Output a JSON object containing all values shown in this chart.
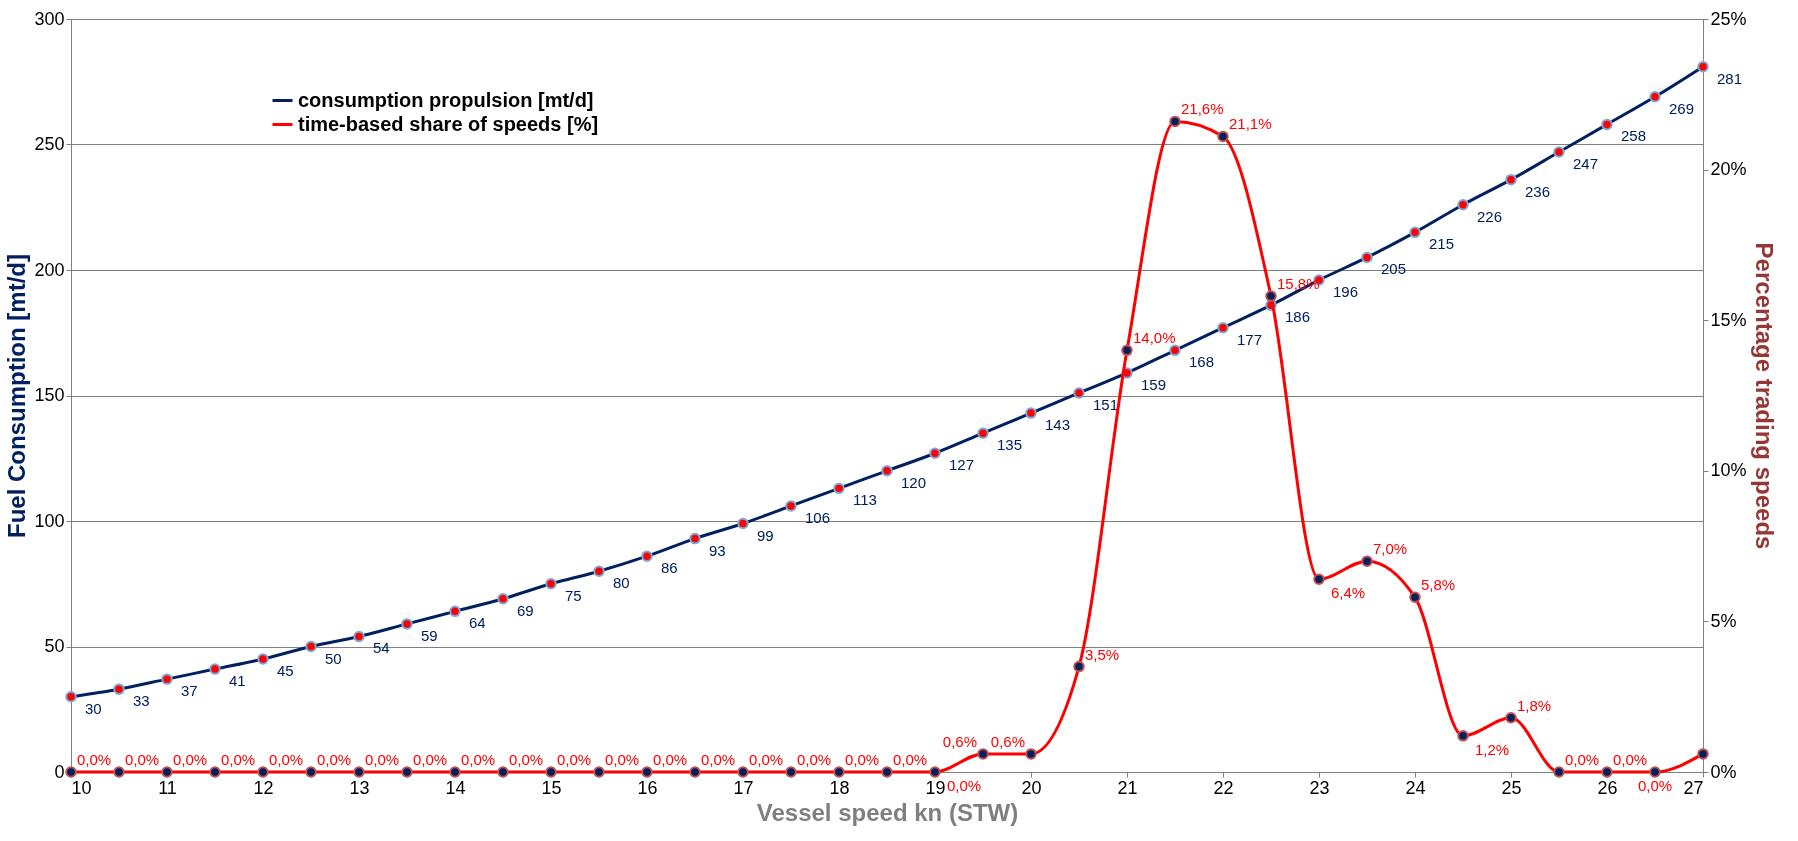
{
  "chart_data": {
    "type": "line",
    "xlabel": "Vessel speed kn (STW)",
    "ylabel": "Fuel Consumption [mt/d]",
    "y2label": "Percentage trading speeds",
    "x": [
      10,
      10.5,
      11,
      11.5,
      12,
      12.5,
      13,
      13.5,
      14,
      14.5,
      15,
      15.5,
      16,
      16.5,
      17,
      17.5,
      18,
      18.5,
      19,
      19.5,
      20,
      20.5,
      21,
      21.5,
      22,
      22.5,
      23,
      23.5,
      24,
      24.5,
      25,
      25.5,
      26,
      26.5,
      27
    ],
    "xlim": [
      10,
      27
    ],
    "xticks": [
      10,
      11,
      12,
      13,
      14,
      15,
      16,
      17,
      18,
      19,
      20,
      21,
      22,
      23,
      24,
      25,
      26,
      27
    ],
    "ylim": [
      0,
      300
    ],
    "yticks": [
      0,
      50,
      100,
      150,
      200,
      250,
      300
    ],
    "y2lim": [
      0,
      25
    ],
    "y2ticks": [
      {
        "value": 0,
        "label": "0%"
      },
      {
        "value": 5,
        "label": "5%"
      },
      {
        "value": 10,
        "label": "10%"
      },
      {
        "value": 15,
        "label": "15%"
      },
      {
        "value": 20,
        "label": "20%"
      },
      {
        "value": 25,
        "label": "25%"
      }
    ],
    "series": [
      {
        "name": "consumption propulsion [mt/d]",
        "color": "#002060",
        "values": [
          30,
          33,
          37,
          41,
          45,
          50,
          54,
          59,
          64,
          69,
          75,
          80,
          86,
          93,
          99,
          106,
          113,
          120,
          127,
          135,
          143,
          151,
          159,
          168,
          177,
          186,
          196,
          205,
          215,
          226,
          236,
          247,
          258,
          269,
          281
        ],
        "data_labels": true
      },
      {
        "name": "time-based share of speeds [%]",
        "color": "#ff0000",
        "axis": "y2",
        "values": [
          0,
          0,
          0,
          0,
          0,
          0,
          0,
          0,
          0,
          0,
          0,
          0,
          0,
          0,
          0,
          0,
          0,
          0,
          0,
          0.6,
          0.6,
          3.5,
          14.0,
          21.6,
          21.1,
          15.8,
          6.4,
          7.0,
          5.8,
          1.2,
          1.8,
          0,
          0,
          0,
          0.6
        ],
        "value_labels": [
          "0,0%",
          "0,0%",
          "0,0%",
          "0,0%",
          "0,0%",
          "0,0%",
          "0,0%",
          "0,0%",
          "0,0%",
          "0,0%",
          "0,0%",
          "0,0%",
          "0,0%",
          "0,0%",
          "0,0%",
          "0,0%",
          "0,0%",
          "0,0%",
          "0,0%",
          "0,6%",
          "0,6%",
          "3,5%",
          "14,0%",
          "21,6%",
          "21,1%",
          "15,8%",
          "6,4%",
          "7,0%",
          "5,8%",
          "1,2%",
          "1,8%",
          "0,0%",
          "0,0%",
          "0,0%",
          null
        ]
      }
    ],
    "grid": "y",
    "legend": "top left",
    "marker": "circle",
    "line_style": "solid"
  }
}
